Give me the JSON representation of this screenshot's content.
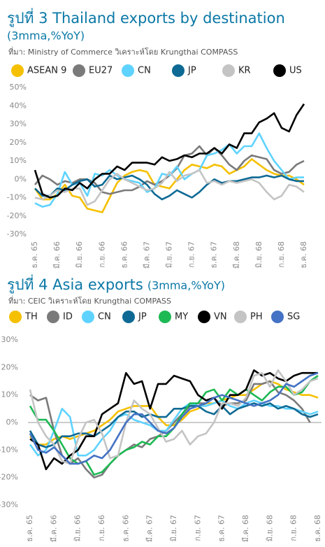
{
  "chart_data": [
    {
      "type": "line",
      "title": "รูปที่ 3 Thailand exports by destination",
      "subtitle": "(3mma,%YoY)",
      "source": "ที่มา: Ministry of Commerce วิเคราะห์โดย Krungthai COMPASS",
      "categories": [
        "ธ.ค. 65",
        null,
        null,
        "มี.ค. 66",
        null,
        null,
        "มิ.ย. 66",
        null,
        null,
        "ก.ย. 66",
        null,
        null,
        "ธ.ค. 66",
        null,
        null,
        "มี.ค. 67",
        null,
        null,
        "มิ.ย. 67",
        null,
        null,
        "ก.ย. 67",
        null,
        null,
        "ธ.ค. 67",
        null,
        null,
        "มี.ค. 68",
        null,
        null,
        "มิ.ย. 68",
        null,
        null,
        "ก.ย. 68",
        null,
        null,
        "ธ.ค. 68"
      ],
      "ylim": [
        -30,
        50
      ],
      "yticks": [
        {
          "value": -30,
          "label": "-30%"
        },
        {
          "value": -20,
          "label": "-20%"
        },
        {
          "value": -10,
          "label": "-10%"
        },
        {
          "value": 0,
          "label": "0%"
        },
        {
          "value": 10,
          "label": "10%"
        },
        {
          "value": 20,
          "label": "20%"
        },
        {
          "value": 30,
          "label": "30%"
        },
        {
          "value": 40,
          "label": "40%"
        },
        {
          "value": 50,
          "label": "50%"
        }
      ],
      "zero_line": false,
      "series": [
        {
          "name": "ASEAN 9",
          "color": "#f5c000",
          "values": [
            -5,
            -11,
            -11,
            -8,
            -3,
            -9,
            -10,
            -16,
            -17,
            -18,
            -10,
            -2,
            2,
            4,
            5,
            4,
            -3,
            -4,
            -5,
            0,
            5,
            8,
            7,
            6,
            8,
            7,
            3,
            5,
            7,
            11,
            8,
            5,
            3,
            2,
            2,
            0,
            -3
          ]
        },
        {
          "name": "EU27",
          "color": "#7a7a7a",
          "values": [
            -3,
            2,
            0,
            -3,
            -1,
            -2,
            0,
            0,
            -2,
            -7,
            -8,
            -7,
            -6,
            -6,
            -4,
            -1,
            -3,
            -1,
            2,
            6,
            13,
            14,
            18,
            13,
            17,
            13,
            8,
            5,
            10,
            13,
            12,
            11,
            5,
            3,
            4,
            8,
            10
          ]
        },
        {
          "name": "CN",
          "color": "#5fd3ff",
          "values": [
            -13,
            -15,
            -14,
            -8,
            4,
            -3,
            -2,
            -9,
            3,
            2,
            5,
            2,
            0,
            -1,
            -2,
            -7,
            -5,
            3,
            2,
            7,
            0,
            3,
            5,
            13,
            14,
            16,
            19,
            14,
            18,
            18,
            25,
            17,
            10,
            5,
            0,
            1,
            1
          ]
        },
        {
          "name": "JP",
          "color": "#0e6a94",
          "values": [
            -5,
            -9,
            -9,
            -5,
            -6,
            -3,
            -1,
            0,
            -4,
            -3,
            2,
            0,
            1,
            2,
            0,
            -3,
            -8,
            -11,
            -9,
            -6,
            -8,
            -10,
            -7,
            -3,
            0,
            -2,
            -1,
            -1,
            0,
            1,
            1,
            2,
            1,
            2,
            0,
            -1,
            -1
          ]
        },
        {
          "name": "KR",
          "color": "#c4c4c4",
          "values": [
            -10,
            -11,
            -9,
            -6,
            -7,
            -5,
            -5,
            -14,
            -12,
            -6,
            0,
            3,
            0,
            -2,
            -4,
            -6,
            -5,
            -2,
            4,
            -1,
            2,
            3,
            5,
            -2,
            -1,
            -3,
            -1,
            -2,
            -1,
            0,
            -2,
            -7,
            -11,
            -9,
            -3,
            -4,
            -7
          ]
        },
        {
          "name": "US",
          "color": "#000000",
          "values": [
            5,
            -8,
            -10,
            -9,
            -5,
            -6,
            -2,
            -5,
            0,
            3,
            3,
            7,
            5,
            9,
            9,
            9,
            8,
            12,
            10,
            11,
            13,
            12,
            14,
            14,
            17,
            14,
            19,
            17,
            25,
            25,
            31,
            33,
            36,
            28,
            26,
            35,
            41
          ]
        }
      ]
    },
    {
      "type": "line",
      "title": "รูปที่ 4 Asia exports",
      "subtitle": "(3mma,%YoY)",
      "source": "ที่มา: CEIC วิเคราะห์โดย Krungthai COMPASS",
      "categories": [
        "ธ.ค. 65",
        null,
        null,
        "มี.ค. 66",
        null,
        null,
        "มิ.ย. 66",
        null,
        null,
        "ก.ย. 66",
        null,
        null,
        "ธ.ค. 66",
        null,
        null,
        "มี.ค. 67",
        null,
        null,
        "มิ.ย. 67",
        null,
        null,
        "ก.ย. 67",
        null,
        null,
        "ธ.ค. 67",
        null,
        null,
        "มี.ค. 68",
        null,
        null,
        "มิ.ย. 68",
        null,
        null,
        "ก.ย. 68",
        null,
        null,
        "ธ.ค. 68"
      ],
      "ylim": [
        -30,
        30
      ],
      "yticks": [
        {
          "value": -30,
          "label": "-30%"
        },
        {
          "value": -20,
          "label": "-20%"
        },
        {
          "value": -10,
          "label": "-10%"
        },
        {
          "value": 0,
          "label": "0%"
        },
        {
          "value": 10,
          "label": "10%"
        },
        {
          "value": 20,
          "label": "20%"
        },
        {
          "value": 30,
          "label": "30%"
        }
      ],
      "zero_line": true,
      "series": [
        {
          "name": "TH",
          "color": "#f5c000",
          "values": [
            -5,
            -8,
            -8,
            -6,
            -5,
            -6,
            -5,
            -4,
            -3,
            -1,
            1,
            4,
            5,
            6,
            6,
            6,
            2,
            -1,
            -1,
            1,
            4,
            5,
            7,
            7,
            8,
            9,
            10,
            10,
            12,
            14,
            15,
            14,
            12,
            11,
            10,
            10,
            9
          ]
        },
        {
          "name": "ID",
          "color": "#7a7a7a",
          "values": [
            10,
            8,
            9,
            -3,
            -12,
            -15,
            -13,
            -17,
            -20,
            -19,
            -15,
            -12,
            -10,
            -8,
            -9,
            -6,
            -5,
            -3,
            0,
            3,
            6,
            7,
            7,
            9,
            6,
            7,
            7,
            8,
            14,
            14,
            15,
            11,
            10,
            8,
            5,
            0,
            null
          ]
        },
        {
          "name": "CN",
          "color": "#5fd3ff",
          "values": [
            -8,
            -12,
            -10,
            -3,
            5,
            2,
            -12,
            -12,
            -10,
            -6,
            -3,
            2,
            3,
            1,
            0,
            -1,
            -3,
            -3,
            1,
            5,
            7,
            6,
            6,
            7,
            8,
            6,
            5,
            7,
            8,
            7,
            6,
            6,
            5,
            5,
            4,
            3,
            4
          ]
        },
        {
          "name": "JP",
          "color": "#0e6a94",
          "values": [
            -3,
            -8,
            -9,
            -8,
            -5,
            -5,
            -4,
            -4,
            -5,
            -3,
            -1,
            2,
            4,
            4,
            2,
            3,
            2,
            2,
            5,
            5,
            6,
            6,
            4,
            3,
            6,
            3,
            5,
            6,
            7,
            6,
            7,
            5,
            6,
            5,
            3,
            2,
            3
          ]
        },
        {
          "name": "MY",
          "color": "#1db954",
          "values": [
            6,
            1,
            1,
            -3,
            -8,
            -13,
            -15,
            -14,
            -19,
            -18,
            -15,
            -12,
            -10,
            -9,
            -7,
            -8,
            -5,
            -5,
            -2,
            3,
            7,
            7,
            11,
            12,
            8,
            12,
            10,
            12,
            10,
            8,
            11,
            13,
            13,
            10,
            11,
            15,
            17
          ]
        },
        {
          "name": "VN",
          "color": "#000000",
          "values": [
            -6,
            -8,
            -17,
            -13,
            -15,
            -12,
            -10,
            -5,
            -5,
            3,
            5,
            7,
            18,
            14,
            15,
            5,
            14,
            14,
            17,
            16,
            15,
            10,
            8,
            9,
            5,
            10,
            10,
            12,
            19,
            17,
            18,
            16,
            15,
            17,
            18,
            18,
            18
          ]
        },
        {
          "name": "PH",
          "color": "#c4c4c4",
          "values": [
            12,
            0,
            -5,
            -8,
            -14,
            -15,
            -6,
            0,
            1,
            -4,
            -13,
            -12,
            0,
            8,
            5,
            3,
            -2,
            -7,
            -6,
            -3,
            -8,
            -5,
            -4,
            0,
            7,
            7,
            6,
            9,
            17,
            18,
            13,
            19,
            15,
            10,
            12,
            15,
            16
          ]
        },
        {
          "name": "SG",
          "color": "#4472c4",
          "values": [
            -4,
            -10,
            -11,
            -9,
            -12,
            -15,
            -15,
            -14,
            -12,
            -13,
            -10,
            -5,
            0,
            3,
            3,
            0,
            -3,
            -4,
            -2,
            2,
            5,
            6,
            7,
            9,
            10,
            9,
            8,
            7,
            6,
            7,
            8,
            10,
            14,
            13,
            15,
            17,
            18
          ]
        }
      ]
    }
  ]
}
